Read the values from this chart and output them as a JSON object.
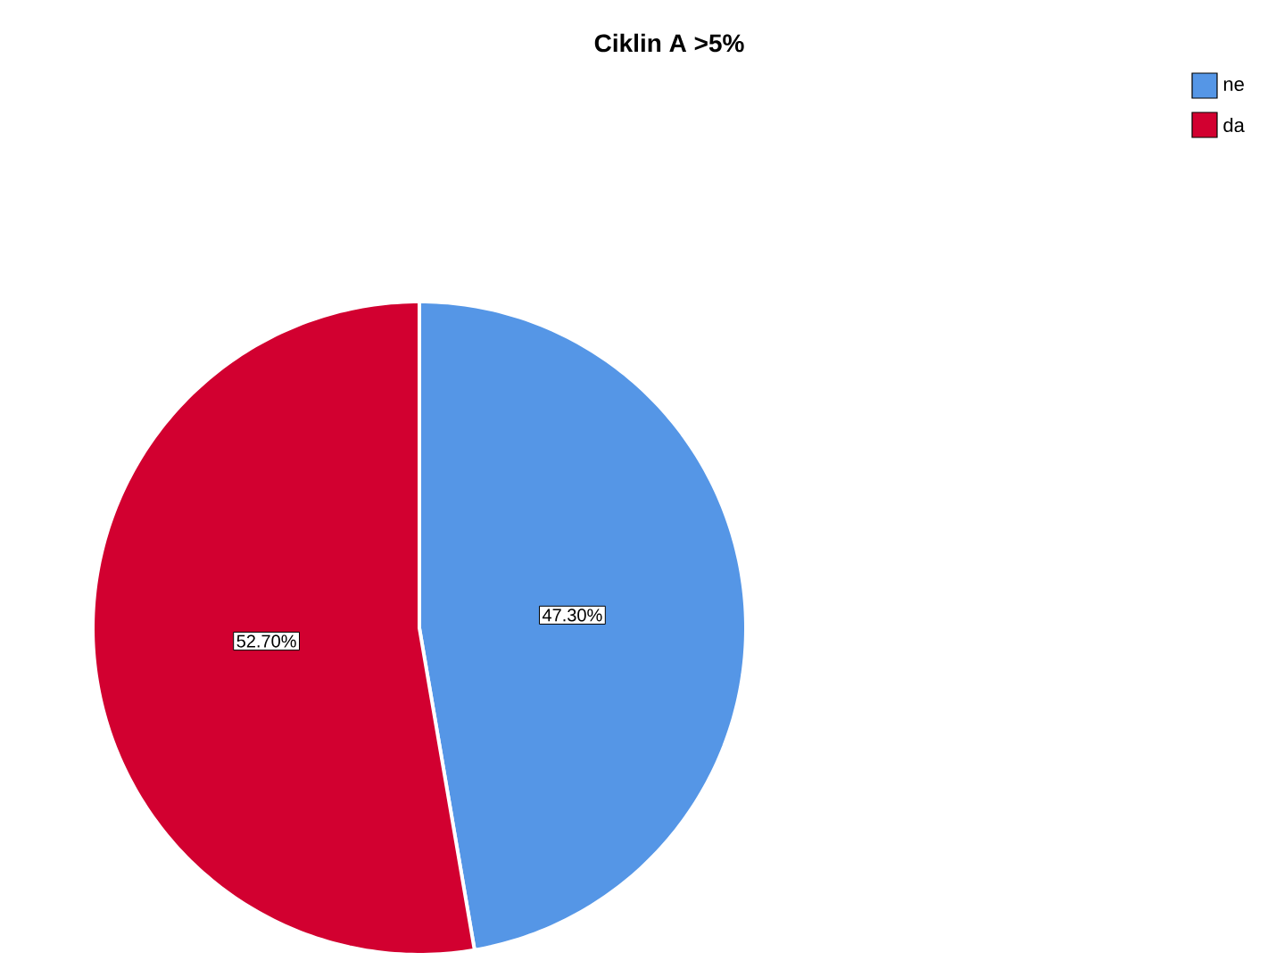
{
  "chart_data": {
    "type": "pie",
    "title": "Ciklin A >5%",
    "categories": [
      "ne",
      "da"
    ],
    "values": [
      47.3,
      52.7
    ],
    "colors": [
      "#5596e6",
      "#d20030"
    ],
    "value_labels": [
      "47.30%",
      "52.70%"
    ],
    "legend": "top right"
  }
}
